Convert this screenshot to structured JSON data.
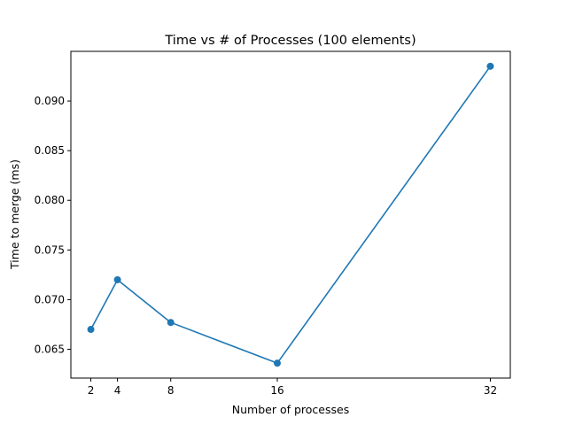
{
  "chart_data": {
    "type": "line",
    "title": "Time vs # of Processes (100 elements)",
    "xlabel": "Number of processes",
    "ylabel": "Time to merge (ms)",
    "x": [
      2,
      4,
      8,
      16,
      32
    ],
    "series": [
      {
        "values": [
          0.067,
          0.072,
          0.0677,
          0.0636,
          0.0935
        ],
        "color": "#1f77b4",
        "marker": "circle"
      }
    ],
    "xticks": [
      2,
      4,
      8,
      16,
      32
    ],
    "xtick_labels": [
      "2",
      "4",
      "8",
      "16",
      "32"
    ],
    "yticks": [
      0.065,
      0.07,
      0.075,
      0.08,
      0.085,
      0.09
    ],
    "ytick_labels": [
      "0.065",
      "0.070",
      "0.075",
      "0.080",
      "0.085",
      "0.090"
    ],
    "xlim": [
      0.5,
      33.5
    ],
    "ylim": [
      0.0621,
      0.095
    ],
    "grid": false,
    "legend": false
  }
}
